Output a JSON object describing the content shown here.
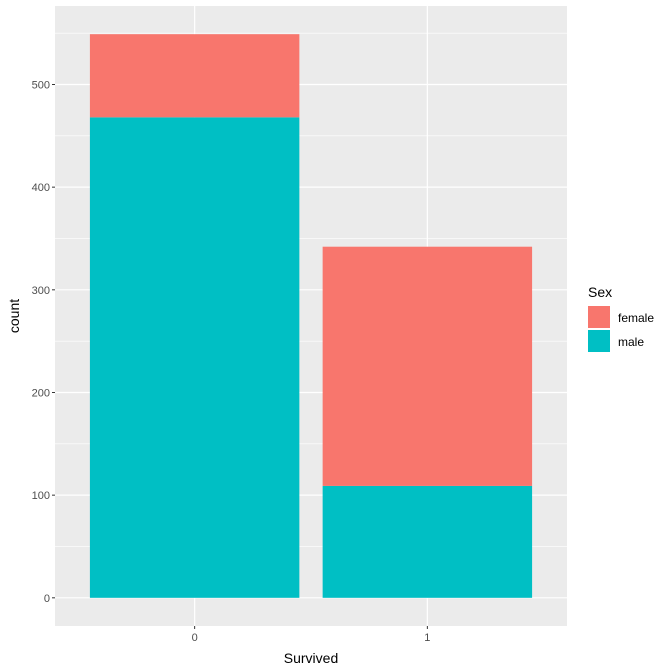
{
  "chart_data": {
    "type": "bar",
    "stacked": true,
    "categories": [
      "0",
      "1"
    ],
    "series": [
      {
        "name": "female",
        "values": [
          81,
          233
        ],
        "color": "#F8766D"
      },
      {
        "name": "male",
        "values": [
          468,
          109
        ],
        "color": "#00BFC4"
      }
    ],
    "xlabel": "Survived",
    "ylabel": "count",
    "ylim": [
      -27.45,
      576.45
    ],
    "yticks": [
      0,
      100,
      200,
      300,
      400,
      500
    ],
    "grid": true,
    "legend": {
      "title": "Sex",
      "placement": "right",
      "entries": [
        "female",
        "male"
      ]
    },
    "colors": {
      "panel_background": "#EBEBEB",
      "grid_line": "#FFFFFF",
      "tick_mark": "#333333",
      "tick_text": "#4D4D4D"
    }
  }
}
